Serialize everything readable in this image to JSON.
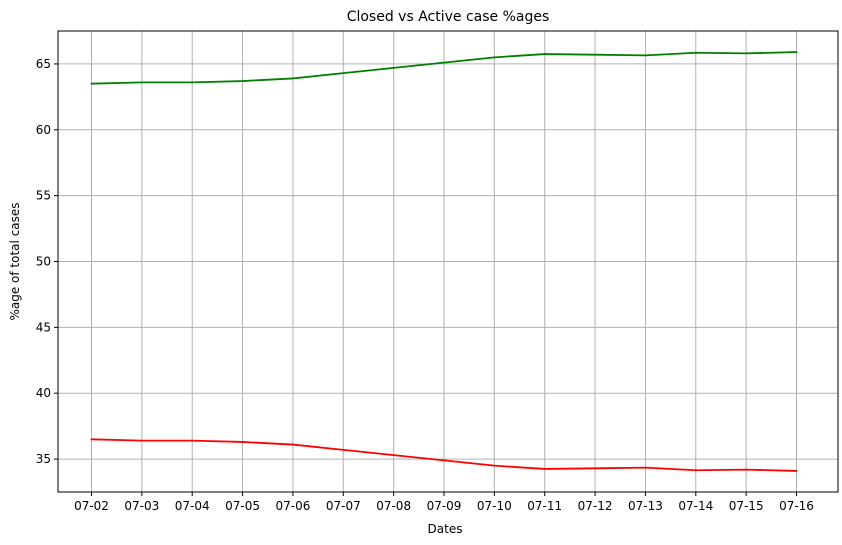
{
  "chart_data": {
    "type": "line",
    "title": "Closed vs Active case %ages",
    "xlabel": "Dates",
    "ylabel": "%age of total cases",
    "categories": [
      "07-02",
      "07-03",
      "07-04",
      "07-05",
      "07-06",
      "07-07",
      "07-08",
      "07-09",
      "07-10",
      "07-11",
      "07-12",
      "07-13",
      "07-14",
      "07-15",
      "07-16"
    ],
    "ylim": [
      32.5,
      67.5
    ],
    "yticks": [
      35,
      40,
      45,
      50,
      55,
      60,
      65
    ],
    "grid": true,
    "series": [
      {
        "color": "#008000",
        "values": [
          63.5,
          63.6,
          63.6,
          63.7,
          63.9,
          64.3,
          64.7,
          65.1,
          65.5,
          65.75,
          65.7,
          65.65,
          65.85,
          65.8,
          65.9
        ]
      },
      {
        "color": "#ff0000",
        "values": [
          36.5,
          36.4,
          36.4,
          36.3,
          36.1,
          35.7,
          35.3,
          34.9,
          34.5,
          34.25,
          34.3,
          34.35,
          34.15,
          34.2,
          34.1
        ]
      }
    ]
  }
}
